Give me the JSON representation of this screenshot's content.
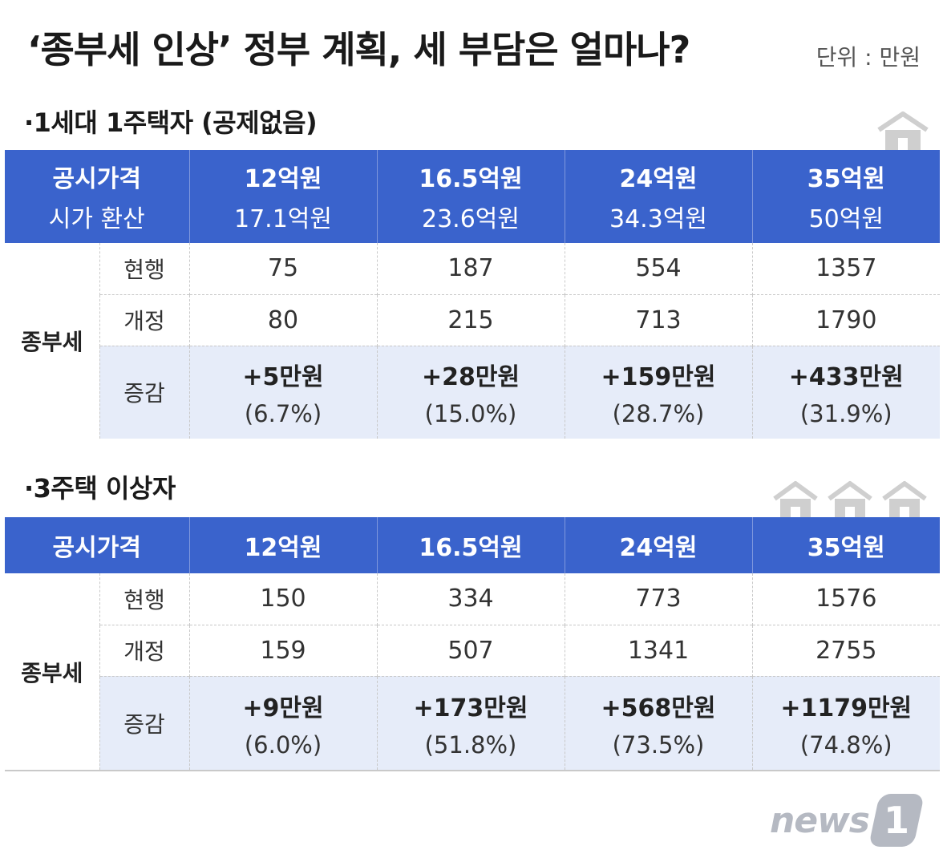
{
  "header": {
    "title": "‘종부세 인상’ 정부 계획, 세 부담은 얼마나?",
    "unit": "단위 : 만원"
  },
  "chart_data": [
    {
      "type": "table",
      "title": "·1세대 1주택자 (공제없음)",
      "columns": [
        {
          "label": "공시가격",
          "sub": "시가 환산"
        },
        {
          "label": "12억원",
          "sub": "17.1억원"
        },
        {
          "label": "16.5억원",
          "sub": "23.6억원"
        },
        {
          "label": "24억원",
          "sub": "34.3억원"
        },
        {
          "label": "35억원",
          "sub": "50억원"
        }
      ],
      "group_label": "종부세",
      "rows": [
        {
          "label": "현행",
          "values": [
            "75",
            "187",
            "554",
            "1357"
          ]
        },
        {
          "label": "개정",
          "values": [
            "80",
            "215",
            "713",
            "1790"
          ]
        },
        {
          "label": "증감",
          "values": [
            {
              "amount": "+5만원",
              "pct": "(6.7%)"
            },
            {
              "amount": "+28만원",
              "pct": "(15.0%)"
            },
            {
              "amount": "+159만원",
              "pct": "(28.7%)"
            },
            {
              "amount": "+433만원",
              "pct": "(31.9%)"
            }
          ]
        }
      ]
    },
    {
      "type": "table",
      "title": "·3주택 이상자",
      "columns": [
        {
          "label": "공시가격"
        },
        {
          "label": "12억원"
        },
        {
          "label": "16.5억원"
        },
        {
          "label": "24억원"
        },
        {
          "label": "35억원"
        }
      ],
      "group_label": "종부세",
      "rows": [
        {
          "label": "현행",
          "values": [
            "150",
            "334",
            "773",
            "1576"
          ]
        },
        {
          "label": "개정",
          "values": [
            "159",
            "507",
            "1341",
            "2755"
          ]
        },
        {
          "label": "증감",
          "values": [
            {
              "amount": "+9만원",
              "pct": "(6.0%)"
            },
            {
              "amount": "+173만원",
              "pct": "(51.8%)"
            },
            {
              "amount": "+568만원",
              "pct": "(73.5%)"
            },
            {
              "amount": "+1179만원",
              "pct": "(74.8%)"
            }
          ]
        }
      ]
    }
  ],
  "icons": {
    "section1": "house-icon",
    "section2": "three-houses-icon",
    "logo": "news1-logo"
  },
  "logo": {
    "text": "news",
    "badge": "1"
  },
  "colors": {
    "header_bg": "#3a63cc",
    "diff_row_bg": "#e6ecf9",
    "icon_gray": "#cfcfcf"
  }
}
